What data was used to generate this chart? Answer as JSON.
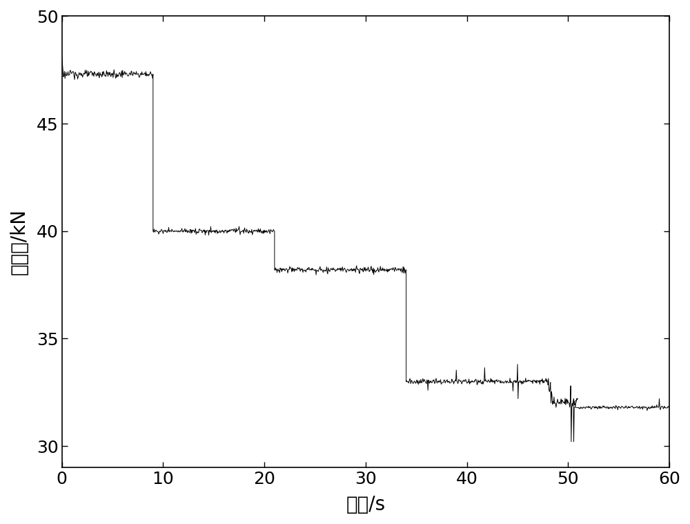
{
  "xlim": [
    0,
    60
  ],
  "ylim": [
    29,
    50
  ],
  "xticks": [
    0,
    10,
    20,
    30,
    40,
    50,
    60
  ],
  "yticks": [
    30,
    35,
    40,
    45,
    50
  ],
  "xlabel": "时间/s",
  "ylabel": "左张力/kN",
  "line_color": "#000000",
  "line_width": 0.7,
  "background_color": "#ffffff",
  "xlabel_fontsize": 20,
  "ylabel_fontsize": 20,
  "tick_fontsize": 18,
  "figsize": [
    10.0,
    7.59
  ],
  "dpi": 100,
  "seg_bases": [
    47.3,
    40.0,
    38.2,
    33.0,
    32.0,
    31.8
  ],
  "seg_noise": [
    0.08,
    0.05,
    0.05,
    0.07,
    0.12,
    0.04
  ],
  "seg_t_starts": [
    0.0,
    9.05,
    21.1,
    34.1,
    48.5,
    51.5
  ],
  "seg_t_ends": [
    9.0,
    21.0,
    34.0,
    48.0,
    51.0,
    60.0
  ],
  "step_times": [
    9.0,
    21.0,
    34.0,
    48.0
  ],
  "step_from": [
    47.3,
    40.0,
    38.2,
    33.0
  ],
  "step_to": [
    40.0,
    38.2,
    33.0,
    32.0
  ]
}
